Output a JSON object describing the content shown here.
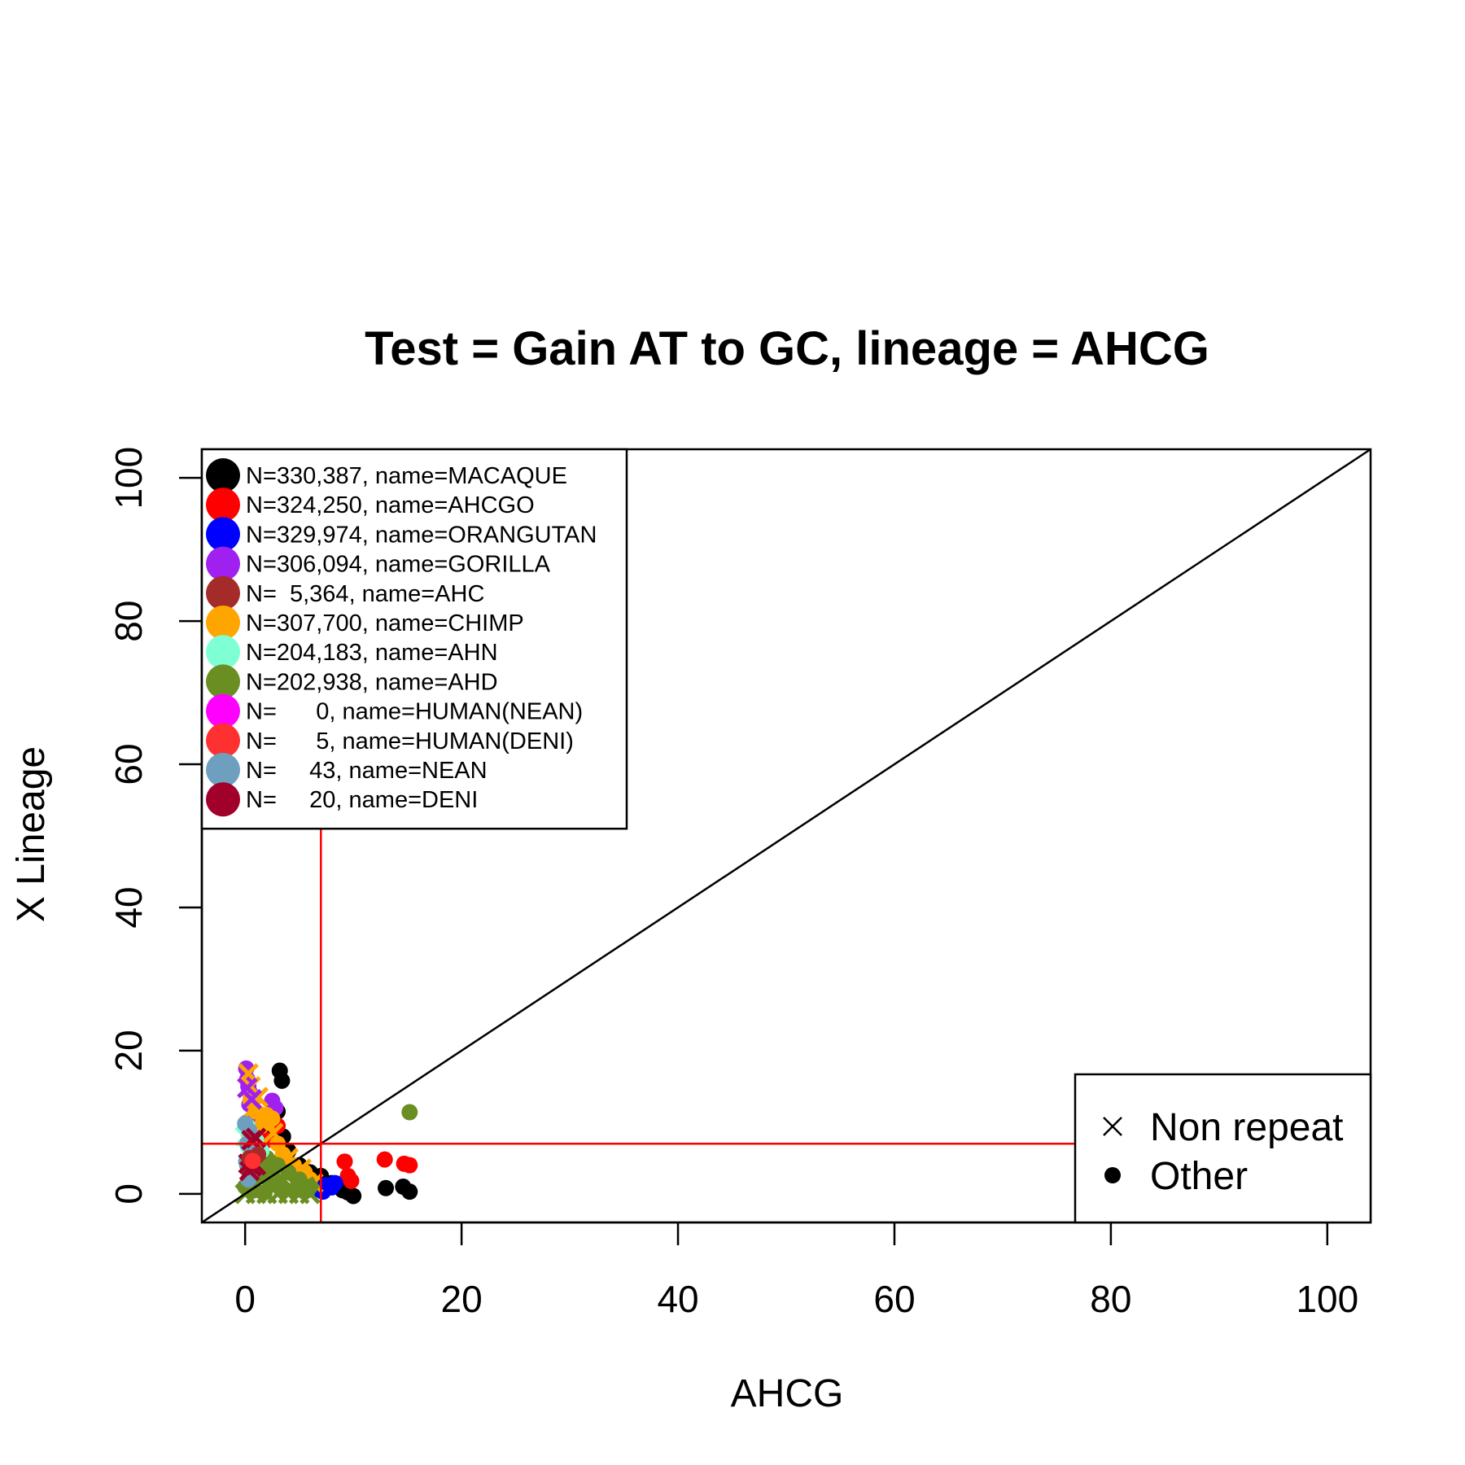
{
  "chart_data": {
    "type": "scatter",
    "title": "Test = Gain AT to GC, lineage = AHCG",
    "xlabel": "AHCG",
    "ylabel": "X Lineage",
    "xlim": [
      -4,
      104
    ],
    "ylim": [
      -4,
      104
    ],
    "xticks": [
      0,
      20,
      40,
      60,
      80,
      100
    ],
    "yticks": [
      0,
      20,
      40,
      60,
      80,
      100
    ],
    "grid": false,
    "reference_lines": {
      "diagonal": true,
      "vertical_x": 7,
      "horizontal_y": 7,
      "threshold_color": "#ff0000"
    },
    "legend": {
      "placement": "top-left",
      "entries": [
        {
          "label": "N=330,387, name=MACAQUE",
          "color": "#000000"
        },
        {
          "label": "N=324,250, name=AHCGO",
          "color": "#ff0000"
        },
        {
          "label": "N=329,974, name=ORANGUTAN",
          "color": "#0000ff"
        },
        {
          "label": "N=306,094, name=GORILLA",
          "color": "#a020f0"
        },
        {
          "label": "N=  5,364, name=AHC",
          "color": "#a52a2a"
        },
        {
          "label": "N=307,700, name=CHIMP",
          "color": "#ffa500"
        },
        {
          "label": "N=204,183, name=AHN",
          "color": "#7fffd4"
        },
        {
          "label": "N=202,938, name=AHD",
          "color": "#6b8e23"
        },
        {
          "label": "N=      0, name=HUMAN(NEAN)",
          "color": "#ff00ff"
        },
        {
          "label": "N=      5, name=HUMAN(DENI)",
          "color": "#ff3030"
        },
        {
          "label": "N=     43, name=NEAN",
          "color": "#6e9fbf"
        },
        {
          "label": "N=     20, name=DENI",
          "color": "#a0002a"
        }
      ]
    },
    "shape_legend": {
      "placement": "bottom-right",
      "entries": [
        {
          "label": "Non repeat",
          "marker": "x"
        },
        {
          "label": "Other",
          "marker": "dot"
        }
      ]
    },
    "series": [
      {
        "color": "#000000",
        "marker": "dot",
        "points": [
          [
            3.2,
            17.2
          ],
          [
            3.4,
            15.8
          ],
          [
            3.0,
            11.5
          ],
          [
            2.5,
            9.0
          ],
          [
            3.5,
            8.0
          ],
          [
            4.0,
            6.0
          ],
          [
            5.0,
            4.0
          ],
          [
            6.0,
            3.0
          ],
          [
            7.0,
            2.5
          ],
          [
            8.0,
            1.5
          ],
          [
            9.0,
            0.5
          ],
          [
            9.5,
            0.2
          ],
          [
            10.0,
            -0.3
          ],
          [
            13.0,
            0.8
          ],
          [
            14.6,
            1.0
          ],
          [
            15.2,
            0.3
          ]
        ]
      },
      {
        "color": "#ff0000",
        "marker": "dot",
        "points": [
          [
            3.0,
            9.5
          ],
          [
            2.0,
            7.5
          ],
          [
            1.5,
            6.0
          ],
          [
            9.2,
            4.5
          ],
          [
            9.5,
            2.5
          ],
          [
            9.8,
            1.8
          ],
          [
            12.9,
            4.8
          ],
          [
            14.7,
            4.2
          ],
          [
            15.2,
            4.0
          ],
          [
            5.0,
            2.0
          ]
        ]
      },
      {
        "color": "#0000ff",
        "marker": "dot",
        "points": [
          [
            7.5,
            1.2
          ],
          [
            8.0,
            0.9
          ],
          [
            8.3,
            1.5
          ],
          [
            6.5,
            0.6
          ],
          [
            7.2,
            0.3
          ]
        ]
      },
      {
        "color": "#a020f0",
        "marker": "dot",
        "points": [
          [
            0.1,
            17.5
          ],
          [
            0.2,
            16.0
          ],
          [
            0.3,
            15.0
          ],
          [
            0.5,
            14.0
          ],
          [
            0.4,
            12.5
          ],
          [
            2.5,
            13.0
          ],
          [
            2.8,
            12.0
          ],
          [
            1.5,
            11.0
          ],
          [
            0.2,
            10.0
          ],
          [
            1.0,
            9.0
          ]
        ]
      },
      {
        "color": "#ffa500",
        "marker": "dot",
        "points": [
          [
            0.5,
            13.0
          ],
          [
            1.0,
            11.5
          ],
          [
            2.0,
            11.0
          ],
          [
            2.5,
            10.5
          ],
          [
            1.5,
            9.5
          ],
          [
            0.3,
            8.5
          ],
          [
            3.0,
            7.0
          ],
          [
            3.5,
            5.5
          ],
          [
            4.5,
            4.0
          ],
          [
            5.5,
            3.0
          ],
          [
            6.0,
            2.0
          ]
        ]
      },
      {
        "color": "#ffa500",
        "marker": "x",
        "points": [
          [
            0.3,
            16.8
          ],
          [
            0.5,
            15.0
          ],
          [
            1.2,
            13.5
          ],
          [
            0.8,
            12.0
          ],
          [
            2.0,
            10.0
          ],
          [
            2.6,
            8.5
          ],
          [
            4.0,
            5.0
          ],
          [
            5.2,
            3.5
          ],
          [
            6.3,
            1.5
          ]
        ]
      },
      {
        "color": "#a020f0",
        "marker": "x",
        "points": [
          [
            0.2,
            14.8
          ],
          [
            0.6,
            13.2
          ]
        ]
      },
      {
        "color": "#6b8e23",
        "marker": "dot",
        "points": [
          [
            15.2,
            11.4
          ],
          [
            0.5,
            7.0
          ],
          [
            1.0,
            6.0
          ],
          [
            2.0,
            5.0
          ],
          [
            3.0,
            4.0
          ],
          [
            4.0,
            3.0
          ],
          [
            5.0,
            2.0
          ],
          [
            6.0,
            1.0
          ],
          [
            0.2,
            4.0
          ],
          [
            1.5,
            2.5
          ],
          [
            2.5,
            1.5
          ],
          [
            3.5,
            0.8
          ],
          [
            4.5,
            0.5
          ],
          [
            5.5,
            0.3
          ],
          [
            0.0,
            1.0
          ],
          [
            0.8,
            0.5
          ],
          [
            1.8,
            0.2
          ]
        ]
      },
      {
        "color": "#6b8e23",
        "marker": "x",
        "points": [
          [
            0.0,
            0.0
          ],
          [
            1.0,
            0.0
          ],
          [
            2.0,
            0.0
          ],
          [
            3.0,
            0.0
          ],
          [
            4.0,
            0.0
          ],
          [
            5.0,
            0.0
          ],
          [
            6.0,
            0.0
          ],
          [
            0.5,
            2.0
          ],
          [
            1.5,
            3.5
          ],
          [
            2.5,
            2.8
          ],
          [
            3.5,
            2.0
          ],
          [
            4.5,
            1.5
          ],
          [
            5.5,
            1.0
          ],
          [
            1.0,
            5.0
          ],
          [
            2.0,
            4.0
          ]
        ]
      },
      {
        "color": "#7fffd4",
        "marker": "dot",
        "points": [
          [
            0.2,
            9.5
          ],
          [
            0.5,
            8.5
          ],
          [
            1.0,
            7.5
          ],
          [
            0.3,
            6.5
          ],
          [
            1.5,
            6.0
          ]
        ]
      },
      {
        "color": "#7fffd4",
        "marker": "x",
        "points": [
          [
            0.0,
            8.0
          ],
          [
            0.8,
            6.8
          ]
        ]
      },
      {
        "color": "#6e9fbf",
        "marker": "dot",
        "points": [
          [
            0.0,
            9.8
          ],
          [
            0.4,
            8.8
          ],
          [
            0.2,
            7.0
          ],
          [
            0.6,
            5.5
          ],
          [
            0.1,
            4.5
          ],
          [
            0.5,
            3.0
          ],
          [
            0.3,
            2.0
          ]
        ]
      },
      {
        "color": "#a0002a",
        "marker": "x",
        "points": [
          [
            0.6,
            7.5
          ],
          [
            1.0,
            7.8
          ],
          [
            0.3,
            4.2
          ],
          [
            0.6,
            3.8
          ],
          [
            1.0,
            4.0
          ],
          [
            0.4,
            3.2
          ]
        ]
      },
      {
        "color": "#a52a2a",
        "marker": "dot",
        "points": [
          [
            0.4,
            5.0
          ],
          [
            1.2,
            5.5
          ]
        ]
      },
      {
        "color": "#ff3030",
        "marker": "dot",
        "points": [
          [
            0.7,
            4.6
          ]
        ]
      }
    ]
  }
}
